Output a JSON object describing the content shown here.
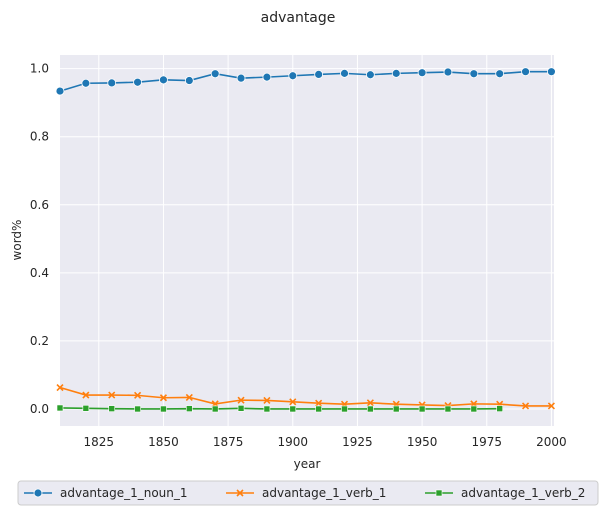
{
  "chart_data": {
    "type": "line",
    "title": "advantage",
    "xlabel": "year",
    "ylabel": "word%",
    "xlim": [
      1810,
      2001
    ],
    "ylim": [
      -0.05,
      1.04
    ],
    "xticks": [
      1825,
      1850,
      1875,
      1900,
      1925,
      1950,
      1975,
      2000
    ],
    "yticks": [
      0.0,
      0.2,
      0.4,
      0.6,
      0.8,
      1.0
    ],
    "ytick_labels": [
      "0.0",
      "0.2",
      "0.4",
      "0.6",
      "0.8",
      "1.0"
    ],
    "grid": true,
    "legend_position": "bottom",
    "background": "#eaeaf2",
    "series": [
      {
        "name": "advantage_1_noun_1",
        "color": "#1f77b4",
        "marker": "circle",
        "x": [
          1810,
          1820,
          1830,
          1840,
          1850,
          1860,
          1870,
          1880,
          1890,
          1900,
          1910,
          1920,
          1930,
          1940,
          1950,
          1960,
          1970,
          1980,
          1990,
          2000
        ],
        "values": [
          0.934,
          0.957,
          0.958,
          0.96,
          0.967,
          0.965,
          0.985,
          0.972,
          0.975,
          0.979,
          0.983,
          0.986,
          0.982,
          0.986,
          0.988,
          0.99,
          0.985,
          0.985,
          0.991,
          0.991
        ]
      },
      {
        "name": "advantage_1_verb_1",
        "color": "#ff7f0e",
        "marker": "x",
        "x": [
          1810,
          1820,
          1830,
          1840,
          1850,
          1860,
          1870,
          1880,
          1890,
          1900,
          1910,
          1920,
          1930,
          1940,
          1950,
          1960,
          1970,
          1980,
          1990,
          2000
        ],
        "values": [
          0.063,
          0.041,
          0.041,
          0.04,
          0.033,
          0.034,
          0.015,
          0.026,
          0.025,
          0.021,
          0.017,
          0.014,
          0.018,
          0.014,
          0.012,
          0.01,
          0.015,
          0.014,
          0.009,
          0.009
        ]
      },
      {
        "name": "advantage_1_verb_2",
        "color": "#2ca02c",
        "marker": "square",
        "x": [
          1810,
          1820,
          1830,
          1840,
          1850,
          1860,
          1870,
          1880,
          1890,
          1900,
          1910,
          1920,
          1930,
          1940,
          1950,
          1960,
          1970,
          1980
        ],
        "values": [
          0.003,
          0.002,
          0.001,
          0.0,
          0.0,
          0.001,
          0.0,
          0.002,
          0.0,
          0.0,
          0.0,
          0.0,
          0.0,
          0.0,
          0.0,
          0.0,
          0.0,
          0.001
        ]
      }
    ]
  }
}
